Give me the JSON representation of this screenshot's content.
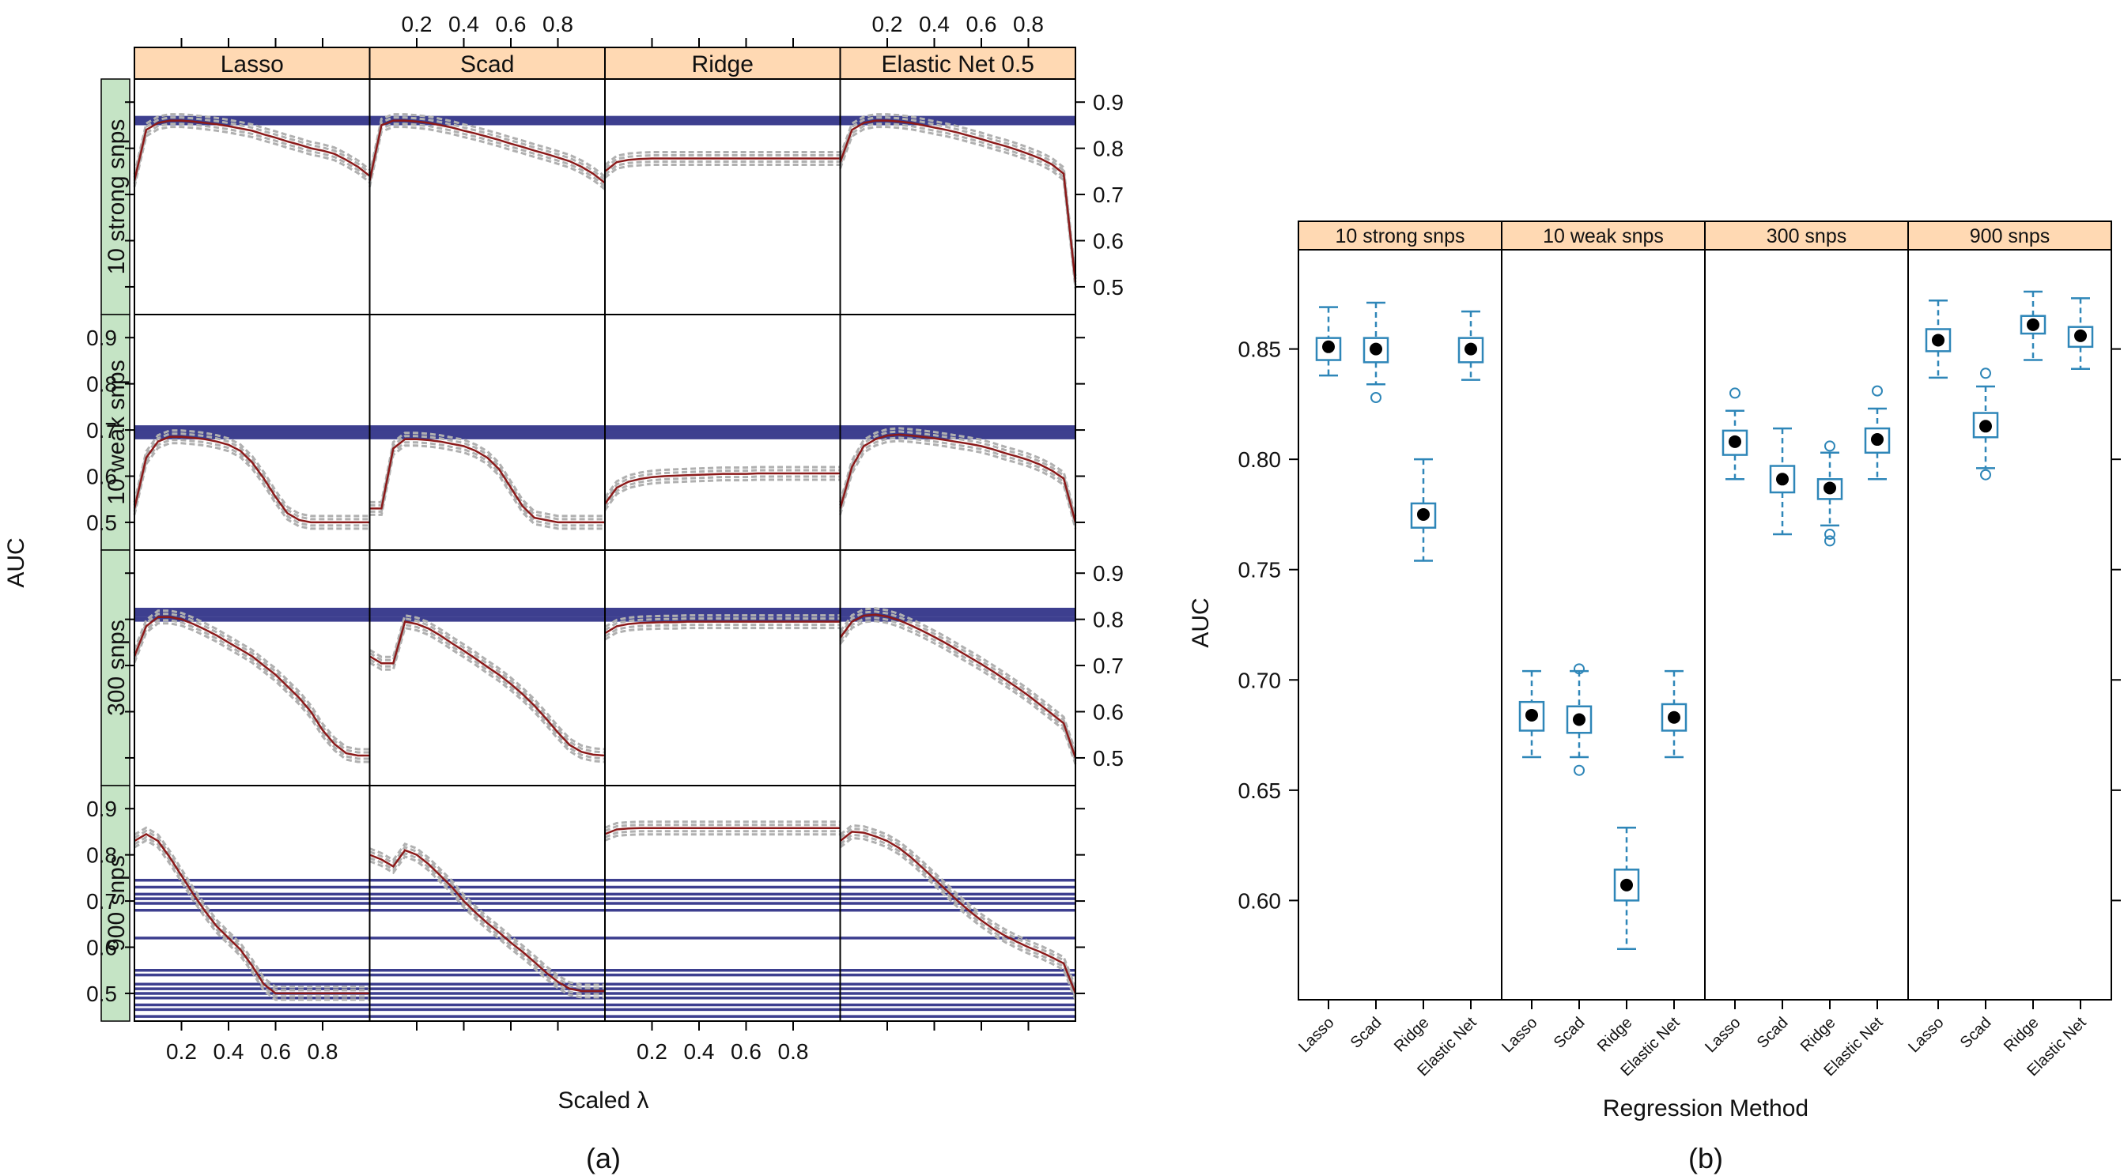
{
  "colors": {
    "strip_bg": "#ffd9b3",
    "row_strip_bg": "#c5e4c5",
    "band": "#3d3f8f",
    "fit_line": "#8b1a1a",
    "traces": "#b0b0b0",
    "box": "#2e86b8",
    "point": "#000000"
  },
  "panel_a": {
    "label": "(a)",
    "xlabel": "Scaled λ",
    "ylabel": "AUC",
    "chart_data": {
      "type": "line",
      "columns": [
        "Lasso",
        "Scad",
        "Ridge",
        "Elastic Net 0.5"
      ],
      "rows": [
        "10 strong snps",
        "10 weak snps",
        "300 snps",
        "900 snps"
      ],
      "x_ticks": [
        0.2,
        0.4,
        0.6,
        0.8
      ],
      "x_tick_labels": [
        "0.2",
        "0.4",
        "0.6",
        "0.8"
      ],
      "xlim": [
        0,
        1
      ],
      "y_ticks": [
        0.5,
        0.6,
        0.7,
        0.8,
        0.9
      ],
      "y_tick_labels": [
        "0.5",
        "0.6",
        "0.7",
        "0.8",
        "0.9"
      ],
      "ylim": [
        0.44,
        0.95
      ],
      "x": [
        0.0,
        0.05,
        0.1,
        0.15,
        0.2,
        0.25,
        0.3,
        0.35,
        0.4,
        0.45,
        0.5,
        0.55,
        0.6,
        0.65,
        0.7,
        0.75,
        0.8,
        0.85,
        0.9,
        0.95,
        1.0
      ],
      "bands": [
        {
          "row": "10 strong snps",
          "values": [
            0.855,
            0.865
          ]
        },
        {
          "row": "10 weak snps",
          "values": [
            0.685,
            0.695,
            0.705
          ]
        },
        {
          "row": "300 snps",
          "values": [
            0.8,
            0.81,
            0.82
          ]
        },
        {
          "row": "900 snps",
          "values": [
            0.45,
            0.465,
            0.475,
            0.49,
            0.5,
            0.51,
            0.52,
            0.54,
            0.55,
            0.62,
            0.68,
            0.695,
            0.705,
            0.715,
            0.73,
            0.745
          ]
        }
      ],
      "series": [
        {
          "row": "10 strong snps",
          "column": "Lasso",
          "values": [
            0.73,
            0.84,
            0.855,
            0.86,
            0.86,
            0.858,
            0.855,
            0.852,
            0.848,
            0.843,
            0.838,
            0.83,
            0.823,
            0.815,
            0.808,
            0.8,
            0.795,
            0.788,
            0.775,
            0.76,
            0.74
          ]
        },
        {
          "row": "10 strong snps",
          "column": "Scad",
          "values": [
            0.73,
            0.85,
            0.86,
            0.86,
            0.858,
            0.855,
            0.85,
            0.845,
            0.838,
            0.832,
            0.825,
            0.818,
            0.81,
            0.803,
            0.795,
            0.788,
            0.78,
            0.772,
            0.76,
            0.745,
            0.725
          ]
        },
        {
          "row": "10 strong snps",
          "column": "Ridge",
          "values": [
            0.75,
            0.77,
            0.775,
            0.777,
            0.778,
            0.778,
            0.778,
            0.778,
            0.778,
            0.778,
            0.778,
            0.778,
            0.778,
            0.778,
            0.778,
            0.778,
            0.778,
            0.778,
            0.778,
            0.778,
            0.778
          ]
        },
        {
          "row": "10 strong snps",
          "column": "Elastic Net 0.5",
          "values": [
            0.77,
            0.84,
            0.855,
            0.86,
            0.86,
            0.858,
            0.855,
            0.85,
            0.845,
            0.84,
            0.834,
            0.827,
            0.82,
            0.812,
            0.805,
            0.797,
            0.788,
            0.778,
            0.765,
            0.745,
            0.51
          ]
        },
        {
          "row": "10 weak snps",
          "column": "Lasso",
          "values": [
            0.53,
            0.64,
            0.675,
            0.685,
            0.685,
            0.683,
            0.68,
            0.675,
            0.668,
            0.655,
            0.63,
            0.595,
            0.555,
            0.52,
            0.505,
            0.5,
            0.5,
            0.5,
            0.5,
            0.5,
            0.5
          ]
        },
        {
          "row": "10 weak snps",
          "column": "Scad",
          "values": [
            0.53,
            0.53,
            0.66,
            0.68,
            0.68,
            0.678,
            0.675,
            0.67,
            0.665,
            0.655,
            0.64,
            0.615,
            0.575,
            0.535,
            0.51,
            0.505,
            0.5,
            0.5,
            0.5,
            0.5,
            0.5
          ]
        },
        {
          "row": "10 weak snps",
          "column": "Ridge",
          "values": [
            0.54,
            0.575,
            0.588,
            0.594,
            0.598,
            0.6,
            0.601,
            0.602,
            0.603,
            0.604,
            0.605,
            0.605,
            0.605,
            0.606,
            0.606,
            0.606,
            0.606,
            0.606,
            0.606,
            0.606,
            0.606
          ]
        },
        {
          "row": "10 weak snps",
          "column": "Elastic Net 0.5",
          "values": [
            0.53,
            0.62,
            0.665,
            0.68,
            0.688,
            0.69,
            0.688,
            0.685,
            0.682,
            0.678,
            0.674,
            0.67,
            0.665,
            0.658,
            0.65,
            0.643,
            0.635,
            0.625,
            0.612,
            0.595,
            0.5
          ]
        },
        {
          "row": "300 snps",
          "column": "Lasso",
          "values": [
            0.72,
            0.785,
            0.805,
            0.805,
            0.8,
            0.79,
            0.778,
            0.765,
            0.75,
            0.735,
            0.72,
            0.7,
            0.68,
            0.655,
            0.63,
            0.6,
            0.56,
            0.53,
            0.51,
            0.505,
            0.505
          ]
        },
        {
          "row": "300 snps",
          "column": "Scad",
          "values": [
            0.72,
            0.705,
            0.705,
            0.795,
            0.79,
            0.78,
            0.765,
            0.748,
            0.732,
            0.715,
            0.697,
            0.68,
            0.66,
            0.638,
            0.613,
            0.585,
            0.555,
            0.528,
            0.513,
            0.507,
            0.505
          ]
        },
        {
          "row": "300 snps",
          "column": "Ridge",
          "values": [
            0.77,
            0.785,
            0.79,
            0.792,
            0.793,
            0.794,
            0.794,
            0.795,
            0.795,
            0.795,
            0.795,
            0.795,
            0.795,
            0.795,
            0.795,
            0.795,
            0.795,
            0.795,
            0.795,
            0.795,
            0.795
          ]
        },
        {
          "row": "300 snps",
          "column": "Elastic Net 0.5",
          "values": [
            0.76,
            0.795,
            0.808,
            0.81,
            0.806,
            0.798,
            0.787,
            0.775,
            0.762,
            0.748,
            0.733,
            0.718,
            0.703,
            0.687,
            0.67,
            0.653,
            0.635,
            0.615,
            0.595,
            0.575,
            0.5
          ]
        },
        {
          "row": "900 snps",
          "column": "Lasso",
          "values": [
            0.83,
            0.845,
            0.83,
            0.795,
            0.755,
            0.715,
            0.678,
            0.645,
            0.62,
            0.595,
            0.56,
            0.52,
            0.5,
            0.5,
            0.5,
            0.5,
            0.5,
            0.5,
            0.5,
            0.5,
            0.5
          ]
        },
        {
          "row": "900 snps",
          "column": "Scad",
          "values": [
            0.8,
            0.79,
            0.775,
            0.81,
            0.8,
            0.78,
            0.755,
            0.73,
            0.7,
            0.675,
            0.652,
            0.632,
            0.61,
            0.59,
            0.568,
            0.545,
            0.525,
            0.51,
            0.505,
            0.505,
            0.505
          ]
        },
        {
          "row": "900 snps",
          "column": "Ridge",
          "values": [
            0.845,
            0.855,
            0.857,
            0.858,
            0.858,
            0.858,
            0.858,
            0.858,
            0.858,
            0.858,
            0.858,
            0.858,
            0.858,
            0.858,
            0.858,
            0.858,
            0.858,
            0.858,
            0.858,
            0.858,
            0.858
          ]
        },
        {
          "row": "900 snps",
          "column": "Elastic Net 0.5",
          "values": [
            0.83,
            0.85,
            0.848,
            0.84,
            0.83,
            0.815,
            0.795,
            0.772,
            0.748,
            0.724,
            0.7,
            0.678,
            0.658,
            0.64,
            0.625,
            0.612,
            0.6,
            0.59,
            0.578,
            0.565,
            0.5
          ]
        }
      ]
    }
  },
  "panel_b": {
    "label": "(b)",
    "xlabel": "Regression Method",
    "ylabel": "AUC",
    "chart_data": {
      "type": "box",
      "panels": [
        "10 strong snps",
        "10 weak snps",
        "300 snps",
        "900 snps"
      ],
      "categories": [
        "Lasso",
        "Scad",
        "Ridge",
        "Elastic Net"
      ],
      "ylim": [
        0.555,
        0.895
      ],
      "y_ticks": [
        0.6,
        0.65,
        0.7,
        0.75,
        0.8,
        0.85
      ],
      "y_tick_labels": [
        "0.60",
        "0.65",
        "0.70",
        "0.75",
        "0.80",
        "0.85"
      ],
      "groups": [
        {
          "panel": "10 strong snps",
          "method": "Lasso",
          "min": 0.838,
          "q1": 0.845,
          "median": 0.851,
          "q3": 0.855,
          "max": 0.869,
          "outliers": []
        },
        {
          "panel": "10 strong snps",
          "method": "Scad",
          "min": 0.834,
          "q1": 0.844,
          "median": 0.85,
          "q3": 0.855,
          "max": 0.871,
          "outliers": [
            0.828
          ]
        },
        {
          "panel": "10 strong snps",
          "method": "Ridge",
          "min": 0.754,
          "q1": 0.769,
          "median": 0.775,
          "q3": 0.78,
          "max": 0.8,
          "outliers": []
        },
        {
          "panel": "10 strong snps",
          "method": "Elastic Net",
          "min": 0.836,
          "q1": 0.844,
          "median": 0.85,
          "q3": 0.855,
          "max": 0.867,
          "outliers": []
        },
        {
          "panel": "10 weak snps",
          "method": "Lasso",
          "min": 0.665,
          "q1": 0.677,
          "median": 0.684,
          "q3": 0.69,
          "max": 0.704,
          "outliers": []
        },
        {
          "panel": "10 weak snps",
          "method": "Scad",
          "min": 0.665,
          "q1": 0.676,
          "median": 0.682,
          "q3": 0.688,
          "max": 0.704,
          "outliers": [
            0.659,
            0.705
          ]
        },
        {
          "panel": "10 weak snps",
          "method": "Ridge",
          "min": 0.578,
          "q1": 0.6,
          "median": 0.607,
          "q3": 0.614,
          "max": 0.633,
          "outliers": []
        },
        {
          "panel": "10 weak snps",
          "method": "Elastic Net",
          "min": 0.665,
          "q1": 0.677,
          "median": 0.683,
          "q3": 0.689,
          "max": 0.704,
          "outliers": []
        },
        {
          "panel": "300 snps",
          "method": "Lasso",
          "min": 0.791,
          "q1": 0.802,
          "median": 0.808,
          "q3": 0.813,
          "max": 0.822,
          "outliers": [
            0.83
          ]
        },
        {
          "panel": "300 snps",
          "method": "Scad",
          "min": 0.766,
          "q1": 0.785,
          "median": 0.791,
          "q3": 0.797,
          "max": 0.814,
          "outliers": []
        },
        {
          "panel": "300 snps",
          "method": "Ridge",
          "min": 0.77,
          "q1": 0.782,
          "median": 0.787,
          "q3": 0.791,
          "max": 0.803,
          "outliers": [
            0.763,
            0.766,
            0.806
          ]
        },
        {
          "panel": "300 snps",
          "method": "Elastic Net",
          "min": 0.791,
          "q1": 0.803,
          "median": 0.809,
          "q3": 0.814,
          "max": 0.823,
          "outliers": [
            0.831
          ]
        },
        {
          "panel": "900 snps",
          "method": "Lasso",
          "min": 0.837,
          "q1": 0.849,
          "median": 0.854,
          "q3": 0.859,
          "max": 0.872,
          "outliers": []
        },
        {
          "panel": "900 snps",
          "method": "Scad",
          "min": 0.796,
          "q1": 0.81,
          "median": 0.815,
          "q3": 0.821,
          "max": 0.833,
          "outliers": [
            0.793,
            0.839
          ]
        },
        {
          "panel": "900 snps",
          "method": "Ridge",
          "min": 0.845,
          "q1": 0.857,
          "median": 0.861,
          "q3": 0.865,
          "max": 0.876,
          "outliers": []
        },
        {
          "panel": "900 snps",
          "method": "Elastic Net",
          "min": 0.841,
          "q1": 0.851,
          "median": 0.856,
          "q3": 0.86,
          "max": 0.873,
          "outliers": []
        }
      ]
    }
  }
}
